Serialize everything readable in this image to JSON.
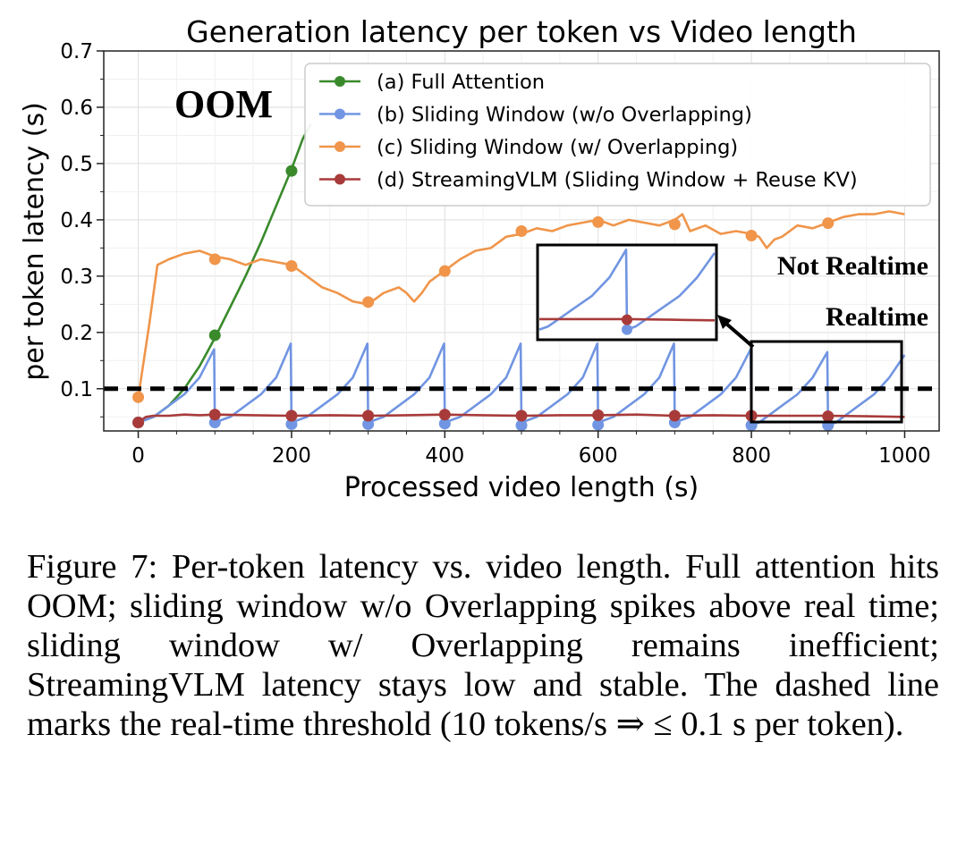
{
  "chart_data": {
    "type": "line",
    "title": "Generation latency per token vs Video length",
    "xlabel": "Processed video length (s)",
    "ylabel": "per token latency (s)",
    "xlim": [
      -45,
      1045
    ],
    "ylim": [
      0.025,
      0.7
    ],
    "xticks": [
      "0",
      "200",
      "400",
      "600",
      "800",
      "1000"
    ],
    "xtick_values": [
      0,
      200,
      400,
      600,
      800,
      1000
    ],
    "yticks": [
      "0.1",
      "0.2",
      "0.3",
      "0.4",
      "0.5",
      "0.6",
      "0.7"
    ],
    "ytick_values": [
      0.1,
      0.2,
      0.3,
      0.4,
      0.5,
      0.6,
      0.7
    ],
    "grid": true,
    "legend_position": "top-right",
    "annotations": {
      "oom": "OOM",
      "not_realtime": "Not Realtime",
      "realtime": "Realtime",
      "threshold": 0.1
    },
    "series": [
      {
        "name": "(a) Full Attention",
        "color": "#3a8a2c",
        "x": [
          0,
          20,
          40,
          60,
          80,
          100,
          120,
          140,
          160,
          180,
          200,
          215,
          225
        ],
        "y": [
          0.04,
          0.05,
          0.07,
          0.1,
          0.14,
          0.19,
          0.245,
          0.3,
          0.36,
          0.425,
          0.49,
          0.545,
          0.57
        ],
        "markers_x": [
          0,
          100,
          200
        ],
        "markers_y": [
          0.04,
          0.195,
          0.487
        ]
      },
      {
        "name": "(b) Sliding Window (w/o Overlapping)",
        "color": "#7195e2",
        "x": [
          0,
          10,
          20,
          40,
          60,
          80,
          99,
          100,
          110,
          120,
          140,
          160,
          180,
          199,
          200,
          210,
          220,
          240,
          260,
          280,
          299,
          300,
          310,
          320,
          340,
          360,
          380,
          399,
          400,
          410,
          420,
          440,
          460,
          480,
          499,
          500,
          510,
          520,
          540,
          560,
          580,
          599,
          600,
          610,
          620,
          640,
          660,
          680,
          699,
          700,
          710,
          720,
          740,
          760,
          780,
          799,
          800,
          810,
          820,
          840,
          860,
          880,
          899,
          900,
          910,
          920,
          940,
          960,
          980,
          1000
        ],
        "y": [
          0.04,
          0.045,
          0.05,
          0.07,
          0.09,
          0.12,
          0.17,
          0.04,
          0.045,
          0.05,
          0.07,
          0.09,
          0.12,
          0.18,
          0.04,
          0.045,
          0.05,
          0.07,
          0.09,
          0.12,
          0.18,
          0.04,
          0.045,
          0.05,
          0.07,
          0.09,
          0.12,
          0.18,
          0.04,
          0.045,
          0.05,
          0.07,
          0.09,
          0.12,
          0.18,
          0.04,
          0.045,
          0.05,
          0.07,
          0.09,
          0.12,
          0.18,
          0.04,
          0.045,
          0.05,
          0.07,
          0.09,
          0.12,
          0.18,
          0.04,
          0.045,
          0.05,
          0.07,
          0.09,
          0.12,
          0.17,
          0.035,
          0.04,
          0.05,
          0.07,
          0.09,
          0.12,
          0.165,
          0.035,
          0.04,
          0.05,
          0.07,
          0.09,
          0.12,
          0.16
        ],
        "markers_x": [
          0,
          100,
          200,
          300,
          400,
          500,
          600,
          700,
          800,
          900
        ],
        "markers_y": [
          0.04,
          0.04,
          0.037,
          0.037,
          0.038,
          0.035,
          0.036,
          0.04,
          0.035,
          0.035
        ]
      },
      {
        "name": "(c) Sliding Window (w/ Overlapping)",
        "color": "#f0954a",
        "x": [
          0,
          15,
          25,
          40,
          60,
          80,
          100,
          120,
          140,
          160,
          180,
          200,
          220,
          240,
          260,
          280,
          300,
          320,
          340,
          350,
          360,
          370,
          380,
          400,
          420,
          440,
          460,
          480,
          500,
          520,
          540,
          560,
          580,
          600,
          620,
          640,
          660,
          680,
          700,
          710,
          720,
          740,
          760,
          780,
          800,
          810,
          820,
          830,
          840,
          860,
          880,
          900,
          920,
          940,
          960,
          980,
          1000
        ],
        "y": [
          0.085,
          0.22,
          0.32,
          0.33,
          0.34,
          0.345,
          0.335,
          0.33,
          0.32,
          0.33,
          0.325,
          0.32,
          0.3,
          0.28,
          0.27,
          0.255,
          0.25,
          0.27,
          0.28,
          0.27,
          0.255,
          0.27,
          0.29,
          0.31,
          0.33,
          0.345,
          0.35,
          0.37,
          0.375,
          0.385,
          0.38,
          0.39,
          0.395,
          0.4,
          0.39,
          0.4,
          0.395,
          0.39,
          0.4,
          0.41,
          0.38,
          0.39,
          0.375,
          0.38,
          0.375,
          0.37,
          0.35,
          0.365,
          0.37,
          0.39,
          0.385,
          0.395,
          0.405,
          0.41,
          0.41,
          0.415,
          0.41
        ],
        "markers_x": [
          0,
          100,
          200,
          300,
          400,
          500,
          600,
          700,
          800,
          900
        ],
        "markers_y": [
          0.085,
          0.33,
          0.318,
          0.254,
          0.309,
          0.38,
          0.396,
          0.392,
          0.372,
          0.394
        ]
      },
      {
        "name": "(d) StreamingVLM (Sliding Window + Reuse KV)",
        "color": "#a83b3a",
        "x": [
          0,
          10,
          20,
          40,
          60,
          80,
          100,
          150,
          200,
          250,
          300,
          350,
          400,
          450,
          500,
          550,
          600,
          650,
          700,
          750,
          800,
          850,
          900,
          950,
          1000
        ],
        "y": [
          0.04,
          0.05,
          0.052,
          0.052,
          0.054,
          0.053,
          0.054,
          0.053,
          0.052,
          0.053,
          0.052,
          0.053,
          0.054,
          0.053,
          0.052,
          0.053,
          0.053,
          0.054,
          0.052,
          0.053,
          0.052,
          0.052,
          0.052,
          0.051,
          0.05
        ],
        "markers_x": [
          0,
          100,
          200,
          300,
          400,
          500,
          600,
          700,
          800,
          900
        ],
        "markers_y": [
          0.04,
          0.054,
          0.052,
          0.052,
          0.054,
          0.052,
          0.053,
          0.052,
          0.052,
          0.051
        ]
      }
    ],
    "inset": {
      "source_x": [
        800,
        1000
      ]
    }
  },
  "caption": "Figure 7: Per-token latency vs. video length. Full attention hits OOM; sliding window w/o Overlapping spikes above real time; sliding window w/ Overlapping remains inefficient; StreamingVLM latency stays low and stable. The dashed line marks the real-time threshold (10 tokens/s ⇒ ≤ 0.1 s per token)."
}
